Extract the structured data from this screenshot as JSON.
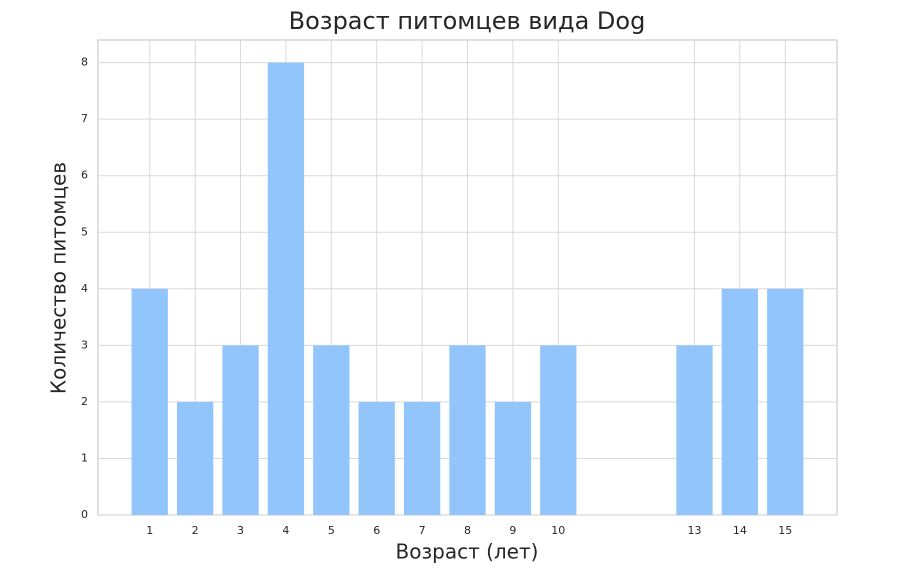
{
  "chart_data": {
    "type": "bar",
    "title": "Возраст питомцев вида Dog",
    "x_label": "Возраст (лет)",
    "y_label": "Количество питомцев",
    "x": [
      1,
      2,
      3,
      4,
      5,
      6,
      7,
      8,
      9,
      10,
      13,
      14,
      15
    ],
    "values": [
      4,
      2,
      3,
      8,
      3,
      2,
      2,
      3,
      2,
      3,
      3,
      4,
      4
    ],
    "color": "#92c5fc",
    "xlim": [
      -0.14,
      16.14
    ],
    "xticks": [
      1,
      2,
      3,
      4,
      5,
      6,
      7,
      8,
      9,
      10,
      13,
      14,
      15
    ],
    "ylim": [
      0,
      8.4
    ],
    "yticks": [
      0,
      1,
      2,
      3,
      4,
      5,
      6,
      7,
      8
    ],
    "grid": true
  }
}
